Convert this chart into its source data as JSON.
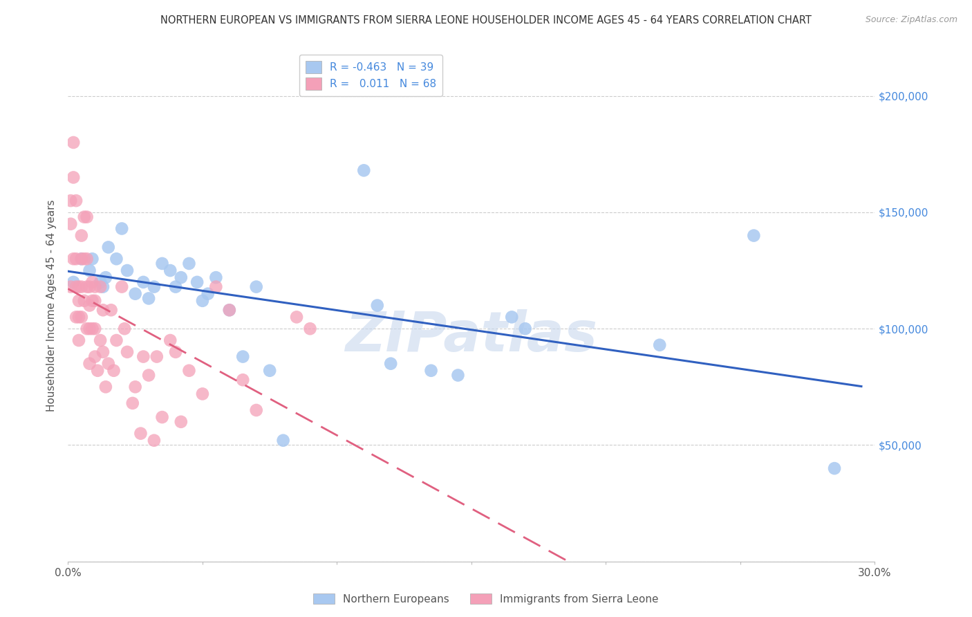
{
  "title": "NORTHERN EUROPEAN VS IMMIGRANTS FROM SIERRA LEONE HOUSEHOLDER INCOME AGES 45 - 64 YEARS CORRELATION CHART",
  "source": "Source: ZipAtlas.com",
  "ylabel": "Householder Income Ages 45 - 64 years",
  "watermark": "ZIPatlas",
  "legend_blue_R": "-0.463",
  "legend_blue_N": "39",
  "legend_pink_R": "0.011",
  "legend_pink_N": "68",
  "yticks": [
    0,
    50000,
    100000,
    150000,
    200000
  ],
  "ytick_labels": [
    "",
    "$50,000",
    "$100,000",
    "$150,000",
    "$200,000"
  ],
  "xlim": [
    0.0,
    0.3
  ],
  "ylim": [
    0,
    220000
  ],
  "blue_color": "#A8C8F0",
  "pink_color": "#F4A0B8",
  "blue_line_color": "#3060C0",
  "pink_line_color": "#E06080",
  "background_color": "#FFFFFF",
  "grid_color": "#CCCCCC",
  "blue_scatter_x": [
    0.002,
    0.005,
    0.008,
    0.009,
    0.012,
    0.013,
    0.014,
    0.015,
    0.018,
    0.02,
    0.022,
    0.025,
    0.028,
    0.03,
    0.032,
    0.035,
    0.038,
    0.04,
    0.042,
    0.045,
    0.048,
    0.05,
    0.052,
    0.055,
    0.06,
    0.065,
    0.07,
    0.075,
    0.08,
    0.11,
    0.115,
    0.12,
    0.135,
    0.145,
    0.165,
    0.17,
    0.22,
    0.255,
    0.285
  ],
  "blue_scatter_y": [
    120000,
    130000,
    125000,
    130000,
    120000,
    118000,
    122000,
    135000,
    130000,
    143000,
    125000,
    115000,
    120000,
    113000,
    118000,
    128000,
    125000,
    118000,
    122000,
    128000,
    120000,
    112000,
    115000,
    122000,
    108000,
    88000,
    118000,
    82000,
    52000,
    168000,
    110000,
    85000,
    82000,
    80000,
    105000,
    100000,
    93000,
    140000,
    40000
  ],
  "pink_scatter_x": [
    0.001,
    0.001,
    0.001,
    0.002,
    0.002,
    0.002,
    0.003,
    0.003,
    0.003,
    0.003,
    0.004,
    0.004,
    0.004,
    0.004,
    0.005,
    0.005,
    0.005,
    0.005,
    0.006,
    0.006,
    0.006,
    0.007,
    0.007,
    0.007,
    0.007,
    0.008,
    0.008,
    0.008,
    0.008,
    0.009,
    0.009,
    0.009,
    0.01,
    0.01,
    0.01,
    0.01,
    0.011,
    0.012,
    0.012,
    0.013,
    0.013,
    0.014,
    0.015,
    0.016,
    0.017,
    0.018,
    0.02,
    0.021,
    0.022,
    0.024,
    0.025,
    0.027,
    0.028,
    0.03,
    0.032,
    0.033,
    0.035,
    0.038,
    0.04,
    0.042,
    0.045,
    0.05,
    0.055,
    0.06,
    0.065,
    0.07,
    0.085,
    0.09
  ],
  "pink_scatter_y": [
    155000,
    145000,
    118000,
    180000,
    165000,
    130000,
    155000,
    130000,
    118000,
    105000,
    118000,
    112000,
    105000,
    95000,
    140000,
    130000,
    118000,
    105000,
    148000,
    130000,
    112000,
    148000,
    130000,
    118000,
    100000,
    118000,
    110000,
    100000,
    85000,
    120000,
    112000,
    100000,
    118000,
    112000,
    100000,
    88000,
    82000,
    118000,
    95000,
    108000,
    90000,
    75000,
    85000,
    108000,
    82000,
    95000,
    118000,
    100000,
    90000,
    68000,
    75000,
    55000,
    88000,
    80000,
    52000,
    88000,
    62000,
    95000,
    90000,
    60000,
    82000,
    72000,
    118000,
    108000,
    78000,
    65000,
    105000,
    100000
  ]
}
